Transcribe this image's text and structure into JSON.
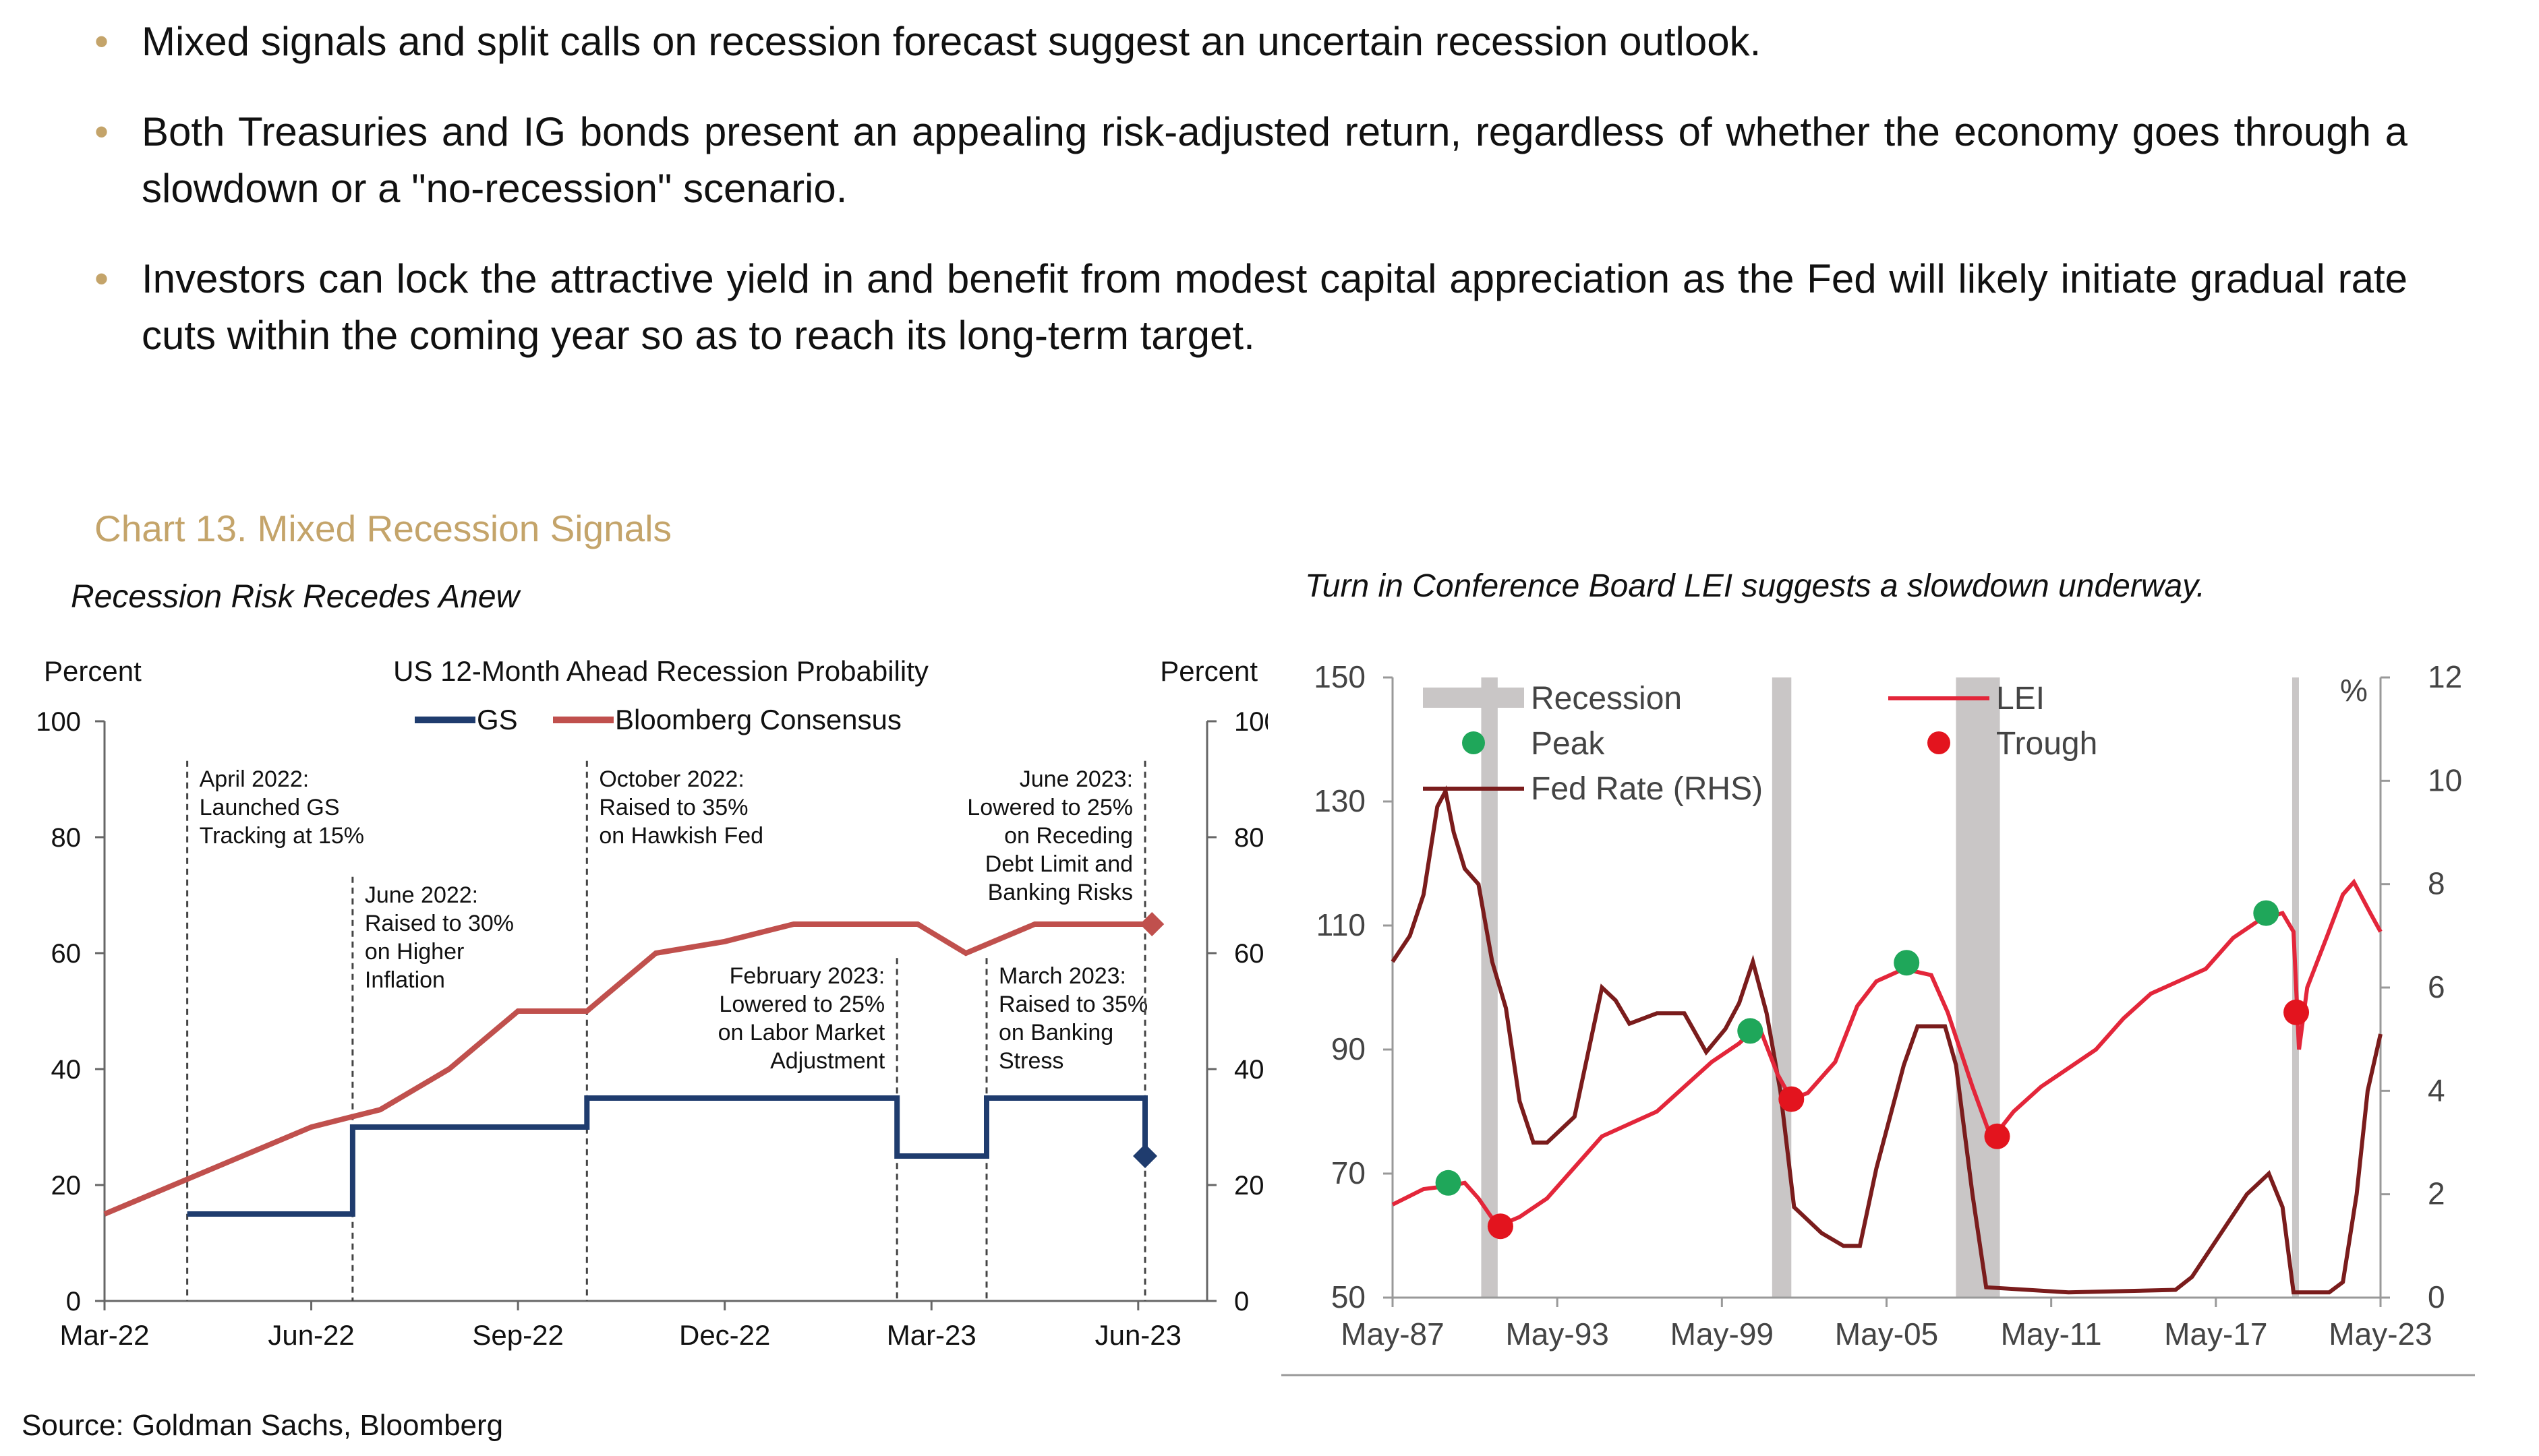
{
  "bullets": [
    "Mixed signals and split calls on recession forecast suggest an uncertain recession outlook.",
    "Both Treasuries and IG bonds present an appealing risk-adjusted return, regardless of whether the economy goes through a slowdown or a \"no-recession\" scenario.",
    "Investors can lock the attractive yield in and benefit from modest capital appreciation as the Fed will likely initiate gradual rate cuts within the coming year so as to reach its long-term target."
  ],
  "chart_heading": "Chart 13. Mixed Recession Signals",
  "source": "Source: Goldman Sachs, Bloomberg",
  "colors": {
    "gold": "#c4a46a",
    "gs": "#1f3c6e",
    "bloomberg": "#c0504d",
    "lei": "#e3263a",
    "fed": "#7a1c1c",
    "recession": "#c9c6c6",
    "peak": "#1fa75a",
    "trough": "#e3141e"
  },
  "chart_data": [
    {
      "type": "line",
      "subtitle": "Recession Risk Recedes Anew",
      "title": "US 12-Month Ahead Recession Probability",
      "ylabel_left": "Percent",
      "ylabel_right": "Percent",
      "ylim": [
        0,
        100
      ],
      "yticks": [
        0,
        20,
        40,
        60,
        80,
        100
      ],
      "xlim": [
        0,
        16
      ],
      "xticks": [
        {
          "x": 0,
          "label": "Mar-22"
        },
        {
          "x": 3,
          "label": "Jun-22"
        },
        {
          "x": 6,
          "label": "Sep-22"
        },
        {
          "x": 9,
          "label": "Dec-22"
        },
        {
          "x": 12,
          "label": "Mar-23"
        },
        {
          "x": 15,
          "label": "Jun-23"
        }
      ],
      "legend_position": "top-center",
      "series": [
        {
          "name": "GS",
          "step": true,
          "points": [
            [
              1.2,
              15
            ],
            [
              3.6,
              15
            ],
            [
              3.6,
              30
            ],
            [
              7,
              30
            ],
            [
              7,
              35
            ],
            [
              11.5,
              35
            ],
            [
              11.5,
              25
            ],
            [
              12.8,
              25
            ],
            [
              12.8,
              35
            ],
            [
              15.1,
              35
            ],
            [
              15.1,
              25
            ]
          ],
          "end_marker": [
            15.1,
            25
          ]
        },
        {
          "name": "Bloomberg Consensus",
          "step": false,
          "points": [
            [
              0,
              15
            ],
            [
              1,
              20
            ],
            [
              2,
              25
            ],
            [
              3,
              30
            ],
            [
              4,
              33
            ],
            [
              5,
              40
            ],
            [
              6,
              50
            ],
            [
              7,
              50
            ],
            [
              8,
              60
            ],
            [
              9,
              62
            ],
            [
              10,
              65
            ],
            [
              11,
              65
            ],
            [
              11.8,
              65
            ],
            [
              12.5,
              60
            ],
            [
              13.5,
              65
            ],
            [
              15.2,
              65
            ]
          ],
          "end_marker": [
            15.2,
            65
          ]
        }
      ],
      "annotations": [
        {
          "x": 1.2,
          "lines": [
            "April 2022:",
            "Launched GS",
            "Tracking at 15%"
          ],
          "align": "left",
          "y": 92
        },
        {
          "x": 3.6,
          "lines": [
            "June 2022:",
            "Raised to 30%",
            "on Higher",
            "Inflation"
          ],
          "align": "left",
          "y": 72
        },
        {
          "x": 7,
          "lines": [
            "October 2022:",
            "Raised to 35%",
            "on Hawkish Fed"
          ],
          "align": "left",
          "y": 92
        },
        {
          "x": 11.5,
          "lines": [
            "February 2023:",
            "Lowered to 25%",
            "on Labor Market",
            "Adjustment"
          ],
          "align": "right",
          "y": 58
        },
        {
          "x": 12.8,
          "lines": [
            "March 2023:",
            "Raised to 35%",
            "on Banking",
            "Stress"
          ],
          "align": "left",
          "y": 58
        },
        {
          "x": 15.1,
          "lines": [
            "June 2023:",
            "Lowered to 25%",
            "on Receding",
            "Debt Limit and",
            "Banking Risks"
          ],
          "align": "right",
          "y": 92
        }
      ]
    },
    {
      "type": "line",
      "subtitle": "Turn in Conference Board LEI suggests a slowdown underway.",
      "ylim_left": [
        50,
        150
      ],
      "yticks_left": [
        50,
        70,
        90,
        110,
        130,
        150
      ],
      "ylabel_right": "%",
      "ylim_right": [
        0,
        12
      ],
      "yticks_right": [
        0,
        2,
        4,
        6,
        8,
        10,
        12
      ],
      "xlim": [
        1987.37,
        2023.37
      ],
      "xticks": [
        {
          "x": 1987.37,
          "label": "May-87"
        },
        {
          "x": 1993.37,
          "label": "May-93"
        },
        {
          "x": 1999.37,
          "label": "May-99"
        },
        {
          "x": 2005.37,
          "label": "May-05"
        },
        {
          "x": 2011.37,
          "label": "May-11"
        },
        {
          "x": 2017.37,
          "label": "May-17"
        },
        {
          "x": 2023.37,
          "label": "May-23"
        }
      ],
      "legend": [
        "Recession",
        "Peak",
        "Fed Rate (RHS)",
        "LEI",
        "Trough"
      ],
      "legend_position": "top",
      "recessions": [
        [
          1990.6,
          1991.2
        ],
        [
          2001.2,
          2001.9
        ],
        [
          2007.9,
          2009.5
        ],
        [
          2020.15,
          2020.35
        ]
      ],
      "series": [
        {
          "name": "LEI",
          "axis": "left",
          "points": [
            [
              1987.37,
              65
            ],
            [
              1988.5,
              67.5
            ],
            [
              1989.4,
              68
            ],
            [
              1990.0,
              68.5
            ],
            [
              1990.5,
              66
            ],
            [
              1991.2,
              61.5
            ],
            [
              1992.0,
              63
            ],
            [
              1993.0,
              66
            ],
            [
              1994.0,
              71
            ],
            [
              1995.0,
              76
            ],
            [
              1996.0,
              78
            ],
            [
              1997.0,
              80
            ],
            [
              1998.0,
              84
            ],
            [
              1999.0,
              88
            ],
            [
              2000.0,
              91
            ],
            [
              2000.7,
              94
            ],
            [
              2001.4,
              86
            ],
            [
              2001.9,
              82
            ],
            [
              2002.5,
              83
            ],
            [
              2003.5,
              88
            ],
            [
              2004.3,
              97
            ],
            [
              2005.0,
              101
            ],
            [
              2006.0,
              103
            ],
            [
              2007.0,
              102
            ],
            [
              2007.6,
              96
            ],
            [
              2008.5,
              84
            ],
            [
              2009.2,
              75.5
            ],
            [
              2010.0,
              80
            ],
            [
              2011.0,
              84
            ],
            [
              2012.0,
              87
            ],
            [
              2013.0,
              90
            ],
            [
              2014.0,
              95
            ],
            [
              2015.0,
              99
            ],
            [
              2016.0,
              101
            ],
            [
              2017.0,
              103
            ],
            [
              2018.0,
              108
            ],
            [
              2019.0,
              111
            ],
            [
              2019.8,
              112
            ],
            [
              2020.2,
              109
            ],
            [
              2020.4,
              90
            ],
            [
              2020.7,
              100
            ],
            [
              2021.4,
              108
            ],
            [
              2022.0,
              115
            ],
            [
              2022.4,
              117
            ],
            [
              2023.0,
              112
            ],
            [
              2023.37,
              109
            ]
          ]
        },
        {
          "name": "Fed Rate (RHS)",
          "axis": "right",
          "points": [
            [
              1987.37,
              6.5
            ],
            [
              1988.0,
              7
            ],
            [
              1988.5,
              7.8
            ],
            [
              1989.0,
              9.5
            ],
            [
              1989.3,
              9.8
            ],
            [
              1989.6,
              9.0
            ],
            [
              1990.0,
              8.3
            ],
            [
              1990.5,
              8.0
            ],
            [
              1991.0,
              6.5
            ],
            [
              1991.5,
              5.6
            ],
            [
              1992.0,
              3.8
            ],
            [
              1992.5,
              3.0
            ],
            [
              1993.0,
              3.0
            ],
            [
              1994.0,
              3.5
            ],
            [
              1995.0,
              6.0
            ],
            [
              1995.5,
              5.75
            ],
            [
              1996.0,
              5.3
            ],
            [
              1997.0,
              5.5
            ],
            [
              1998.0,
              5.5
            ],
            [
              1998.8,
              4.75
            ],
            [
              1999.5,
              5.2
            ],
            [
              2000.0,
              5.7
            ],
            [
              2000.5,
              6.5
            ],
            [
              2001.0,
              5.5
            ],
            [
              2001.5,
              4.0
            ],
            [
              2002.0,
              1.75
            ],
            [
              2003.0,
              1.25
            ],
            [
              2003.8,
              1.0
            ],
            [
              2004.4,
              1.0
            ],
            [
              2005.0,
              2.5
            ],
            [
              2006.0,
              4.5
            ],
            [
              2006.5,
              5.25
            ],
            [
              2007.5,
              5.25
            ],
            [
              2007.9,
              4.5
            ],
            [
              2008.5,
              2.0
            ],
            [
              2009.0,
              0.2
            ],
            [
              2012.0,
              0.1
            ],
            [
              2015.9,
              0.15
            ],
            [
              2016.5,
              0.4
            ],
            [
              2017.5,
              1.2
            ],
            [
              2018.5,
              2.0
            ],
            [
              2019.3,
              2.4
            ],
            [
              2019.8,
              1.75
            ],
            [
              2020.2,
              0.1
            ],
            [
              2021.5,
              0.1
            ],
            [
              2022.0,
              0.3
            ],
            [
              2022.5,
              2.0
            ],
            [
              2022.9,
              4.0
            ],
            [
              2023.37,
              5.1
            ]
          ]
        }
      ],
      "peaks": [
        [
          1989.4,
          68.5
        ],
        [
          2000.4,
          93
        ],
        [
          2006.1,
          104
        ],
        [
          2019.2,
          112
        ]
      ],
      "troughs": [
        [
          1991.3,
          61.5
        ],
        [
          2001.9,
          82
        ],
        [
          2009.4,
          76
        ],
        [
          2020.3,
          96
        ]
      ]
    }
  ]
}
